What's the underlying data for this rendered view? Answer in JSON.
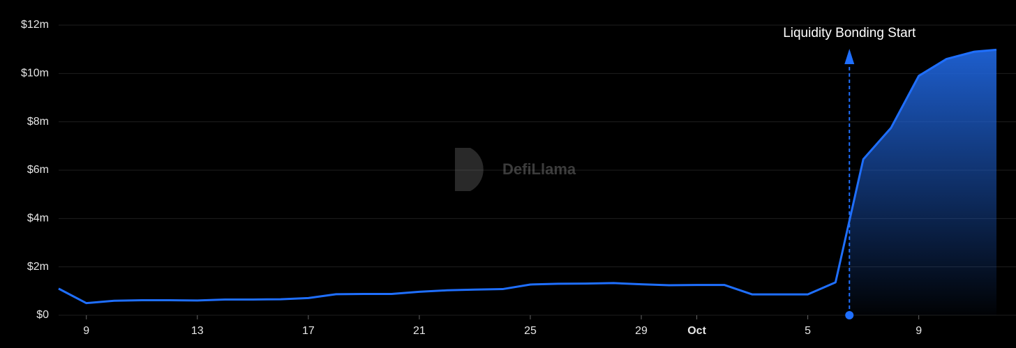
{
  "chart_data": {
    "type": "line",
    "watermark": "DefiLlama",
    "x": [
      0,
      1,
      2,
      3,
      4,
      5,
      6,
      7,
      8,
      9,
      10,
      11,
      12,
      13,
      14,
      15,
      16,
      17,
      18,
      19,
      20,
      21,
      22,
      23,
      24,
      25,
      26,
      27,
      28,
      29,
      30,
      31,
      32,
      33,
      33.8
    ],
    "series": [
      {
        "color": "#1f6fff",
        "values": [
          1.1,
          0.5,
          0.6,
          0.62,
          0.62,
          0.61,
          0.65,
          0.65,
          0.66,
          0.71,
          0.87,
          0.88,
          0.88,
          0.97,
          1.03,
          1.06,
          1.08,
          1.27,
          1.3,
          1.31,
          1.33,
          1.28,
          1.24,
          1.25,
          1.25,
          0.86,
          0.86,
          0.86,
          1.36,
          6.45,
          7.75,
          9.9,
          10.6,
          10.9,
          10.98
        ]
      }
    ],
    "xlim": [
      0,
      33.8
    ],
    "xticks": [
      {
        "value": 1,
        "label": "9"
      },
      {
        "value": 5,
        "label": "13"
      },
      {
        "value": 9,
        "label": "17"
      },
      {
        "value": 13,
        "label": "21"
      },
      {
        "value": 17,
        "label": "25"
      },
      {
        "value": 21,
        "label": "29"
      },
      {
        "value": 23,
        "label": "Oct"
      },
      {
        "value": 27,
        "label": "5"
      },
      {
        "value": 31,
        "label": "9"
      }
    ],
    "ylim": [
      0,
      12
    ],
    "yticks": [
      {
        "value": 0,
        "label": "$0"
      },
      {
        "value": 2,
        "label": "$2m"
      },
      {
        "value": 4,
        "label": "$4m"
      },
      {
        "value": 6,
        "label": "$6m"
      },
      {
        "value": 8,
        "label": "$8m"
      },
      {
        "value": 10,
        "label": "$10m"
      },
      {
        "value": 12,
        "label": "$12m"
      }
    ],
    "grid": true,
    "annotation": {
      "text": "Liquidity Bonding Start",
      "x": 28.5
    }
  }
}
